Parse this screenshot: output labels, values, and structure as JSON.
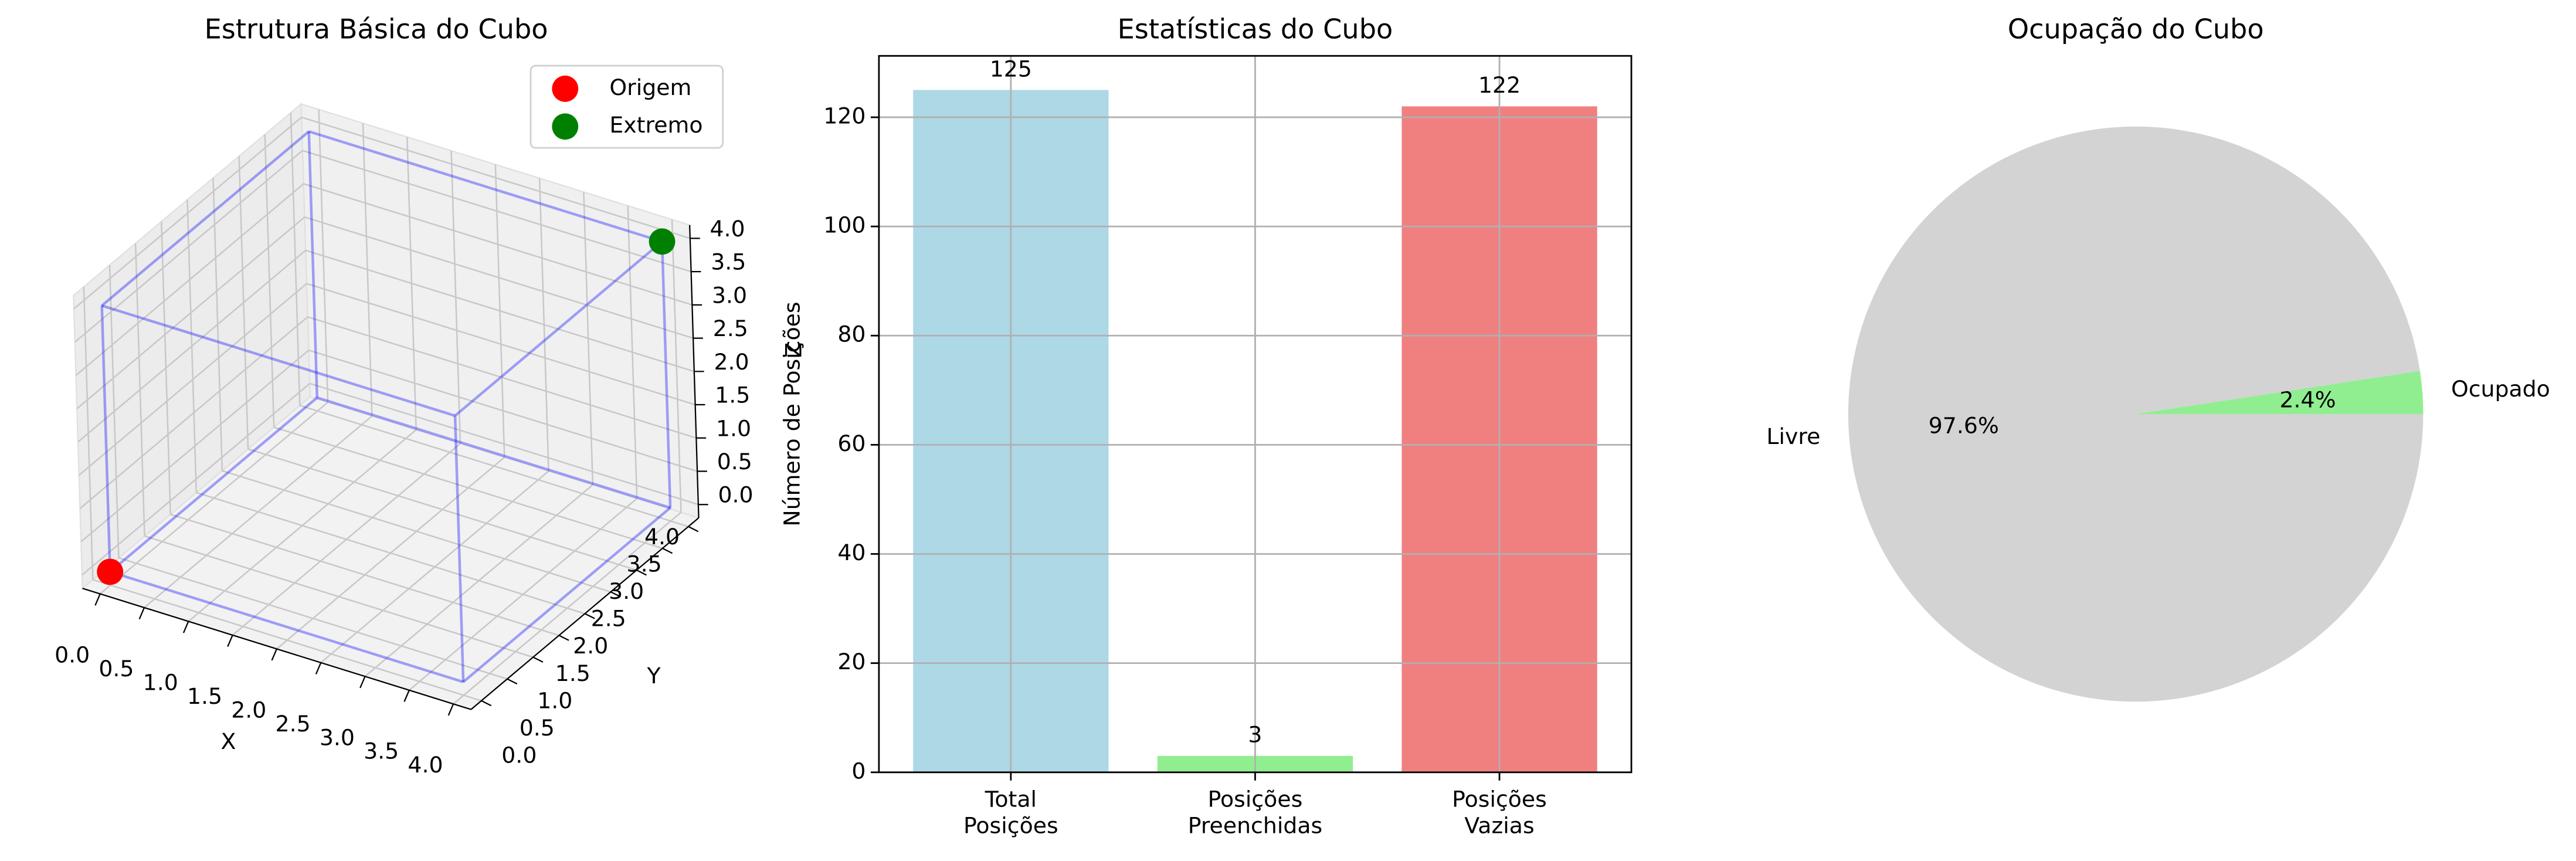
{
  "chart_data": [
    {
      "type": "scatter3d",
      "title": "Estrutura Básica do Cubo",
      "xlabel": "X",
      "ylabel": "Y",
      "zlabel": "Z",
      "series": [
        {
          "name": "Origem",
          "color": "#ff0000",
          "x": [
            0
          ],
          "y": [
            0
          ],
          "z": [
            0
          ]
        },
        {
          "name": "Extremo",
          "color": "#008000",
          "x": [
            4
          ],
          "y": [
            4
          ],
          "z": [
            4
          ]
        }
      ],
      "edge_color": "#0000ff",
      "xlim": [
        -0.2,
        4.2
      ],
      "ylim": [
        -0.2,
        4.2
      ],
      "zlim": [
        -0.2,
        4.2
      ],
      "xticks": [
        {
          "value": 0,
          "label": "0.0"
        },
        0.5,
        {
          "value": 1,
          "label": "1.0"
        },
        1.5,
        {
          "value": 2,
          "label": "2.0"
        },
        2.5,
        {
          "value": 3,
          "label": "3.0"
        },
        3.5,
        {
          "value": 4,
          "label": "4.0"
        }
      ],
      "yticks": [
        {
          "value": 0,
          "label": "0.0"
        },
        0.5,
        {
          "value": 1,
          "label": "1.0"
        },
        1.5,
        {
          "value": 2,
          "label": "2.0"
        },
        2.5,
        {
          "value": 3,
          "label": "3.0"
        },
        3.5,
        {
          "value": 4,
          "label": "4.0"
        }
      ],
      "zticks": [
        {
          "value": 0,
          "label": "0.0"
        },
        0.5,
        {
          "value": 1,
          "label": "1.0"
        },
        1.5,
        {
          "value": 2,
          "label": "2.0"
        },
        2.5,
        {
          "value": 3,
          "label": "3.0"
        },
        3.5,
        {
          "value": 4,
          "label": "4.0"
        }
      ],
      "grid": true,
      "legend": "upper right"
    },
    {
      "type": "bar",
      "title": "Estatísticas do Cubo",
      "ylabel": "Número de Posições",
      "categories": [
        "Total\nPosições",
        "Posições\nPreenchidas",
        "Posições\nVazias"
      ],
      "values": [
        125,
        3,
        122
      ],
      "colors": [
        "#add8e6",
        "#90ee90",
        "#f08080"
      ],
      "ylim": [
        0,
        131.25
      ],
      "yticks": [
        0,
        20,
        40,
        60,
        80,
        100,
        120
      ],
      "grid": true
    },
    {
      "type": "pie",
      "title": "Ocupação do Cubo",
      "labels": [
        "Ocupado",
        "Livre"
      ],
      "values": [
        2.4,
        97.6
      ],
      "value_labels": [
        "2.4%",
        "97.6%"
      ],
      "colors": [
        "#90ee90",
        "#d3d3d3"
      ]
    }
  ]
}
